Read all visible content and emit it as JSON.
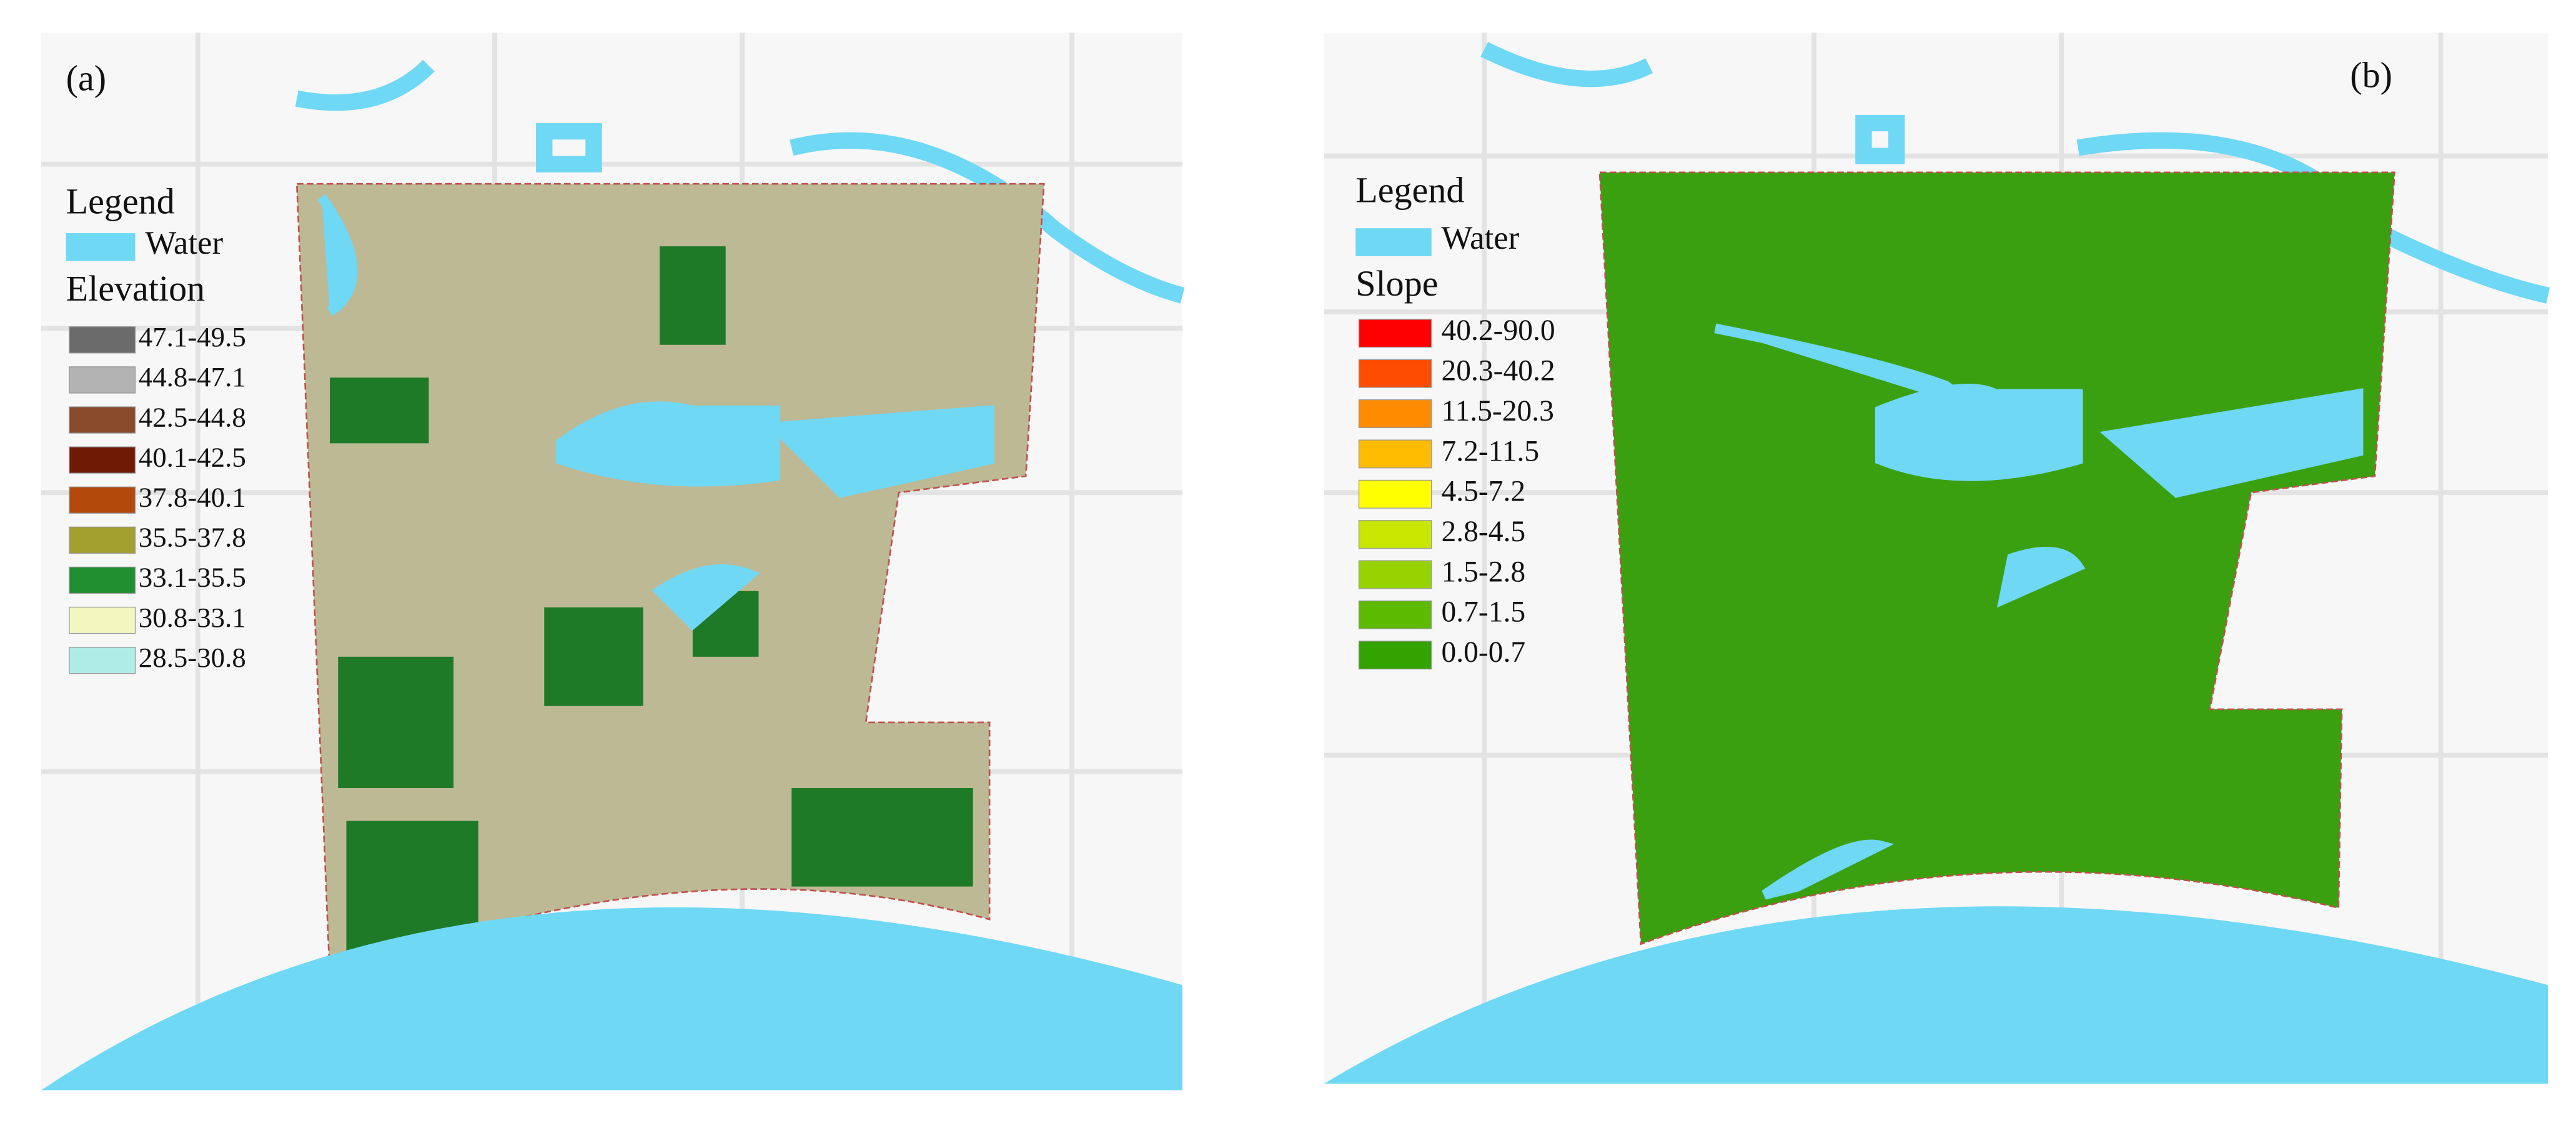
{
  "panels": [
    {
      "label": "(a)",
      "legend_title": "Legend",
      "water": {
        "label": "Water",
        "color": "#6fd8f5"
      },
      "class_title": "Elevation",
      "classes": [
        {
          "label": "47.1-49.5",
          "color": "#6b6b6b"
        },
        {
          "label": "44.8-47.1",
          "color": "#b3b3b3"
        },
        {
          "label": "42.5-44.8",
          "color": "#8a4a2c"
        },
        {
          "label": "40.1-42.5",
          "color": "#6e1a05"
        },
        {
          "label": "37.8-40.1",
          "color": "#b34a0c"
        },
        {
          "label": "35.5-37.8",
          "color": "#a3a030"
        },
        {
          "label": "33.1-35.5",
          "color": "#1f8f30"
        },
        {
          "label": "30.8-33.1",
          "color": "#f2f7c0"
        },
        {
          "label": "28.5-30.8",
          "color": "#b0ece6"
        }
      ]
    },
    {
      "label": "(b)",
      "legend_title": "Legend",
      "water": {
        "label": "Water",
        "color": "#6fd8f5"
      },
      "class_title": "Slope",
      "classes": [
        {
          "label": "40.2-90.0",
          "color": "#ff0000"
        },
        {
          "label": "20.3-40.2",
          "color": "#ff4d00"
        },
        {
          "label": "11.5-20.3",
          "color": "#ff8c00"
        },
        {
          "label": "7.2-11.5",
          "color": "#ffbb00"
        },
        {
          "label": "4.5-7.2",
          "color": "#ffff00"
        },
        {
          "label": "2.8-4.5",
          "color": "#c8e600"
        },
        {
          "label": "1.5-2.8",
          "color": "#96d200"
        },
        {
          "label": "0.7-1.5",
          "color": "#5cba00"
        },
        {
          "label": "0.0-0.7",
          "color": "#33a300"
        }
      ]
    }
  ]
}
